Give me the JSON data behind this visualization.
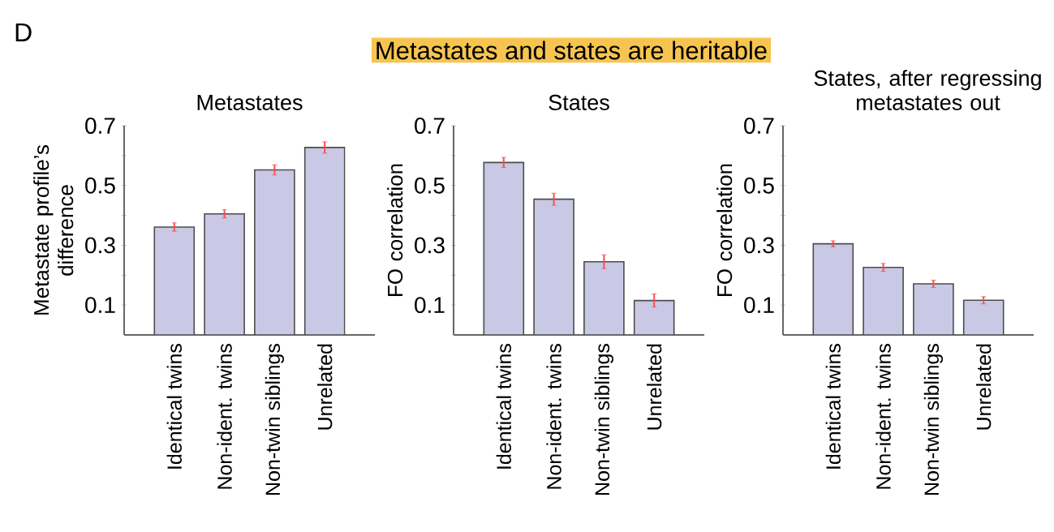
{
  "chart_data": [
    {
      "type": "bar",
      "title": "Metastates",
      "ylabel": "Metastate profile’s difference",
      "annotations": [
        "D",
        "Metastates and states are heritable"
      ],
      "categories": [
        "Identical twins",
        "Non-ident. twins",
        "Non-twin siblings",
        "Unrelated"
      ],
      "values": [
        0.361,
        0.405,
        0.552,
        0.627
      ],
      "errors": [
        0.014,
        0.014,
        0.017,
        0.019
      ],
      "color": "#c9c9e6",
      "ylim": [
        0,
        0.7
      ],
      "yticks": [
        0.1,
        {
          "value": 0.2,
          "label": null
        },
        0.3,
        {
          "value": 0.4,
          "label": null
        },
        0.5,
        {
          "value": 0.6,
          "label": null
        },
        0.7
      ]
    },
    {
      "type": "bar",
      "title": "States",
      "ylabel": "FO correlation",
      "categories": [
        "Identical twins",
        "Non-ident. twins",
        "Non-twin siblings",
        "Unrelated"
      ],
      "values": [
        0.577,
        0.454,
        0.245,
        0.115
      ],
      "errors": [
        0.017,
        0.02,
        0.023,
        0.022
      ],
      "color": "#c9c9e6",
      "ylim": [
        0,
        0.7
      ],
      "yticks": [
        0.1,
        {
          "value": 0.2,
          "label": null
        },
        0.3,
        {
          "value": 0.4,
          "label": null
        },
        0.5,
        {
          "value": 0.6,
          "label": null
        },
        0.7
      ]
    },
    {
      "type": "bar",
      "title": "States, after regressing metastates out",
      "ylabel": "FO correlation",
      "categories": [
        "Identical twins",
        "Non-ident. twins",
        "Non-twin siblings",
        "Unrelated"
      ],
      "values": [
        0.305,
        0.226,
        0.171,
        0.116
      ],
      "errors": [
        0.01,
        0.013,
        0.012,
        0.012
      ],
      "color": "#c9c9e6",
      "ylim": [
        0,
        0.7
      ],
      "yticks": [
        0.1,
        {
          "value": 0.2,
          "label": null
        },
        0.3,
        {
          "value": 0.4,
          "label": null
        },
        0.5,
        {
          "value": 0.6,
          "label": null
        },
        0.7
      ]
    }
  ]
}
